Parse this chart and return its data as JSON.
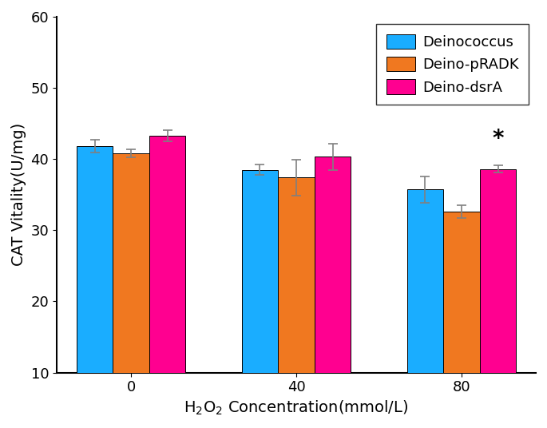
{
  "categories": [
    "0",
    "40",
    "80"
  ],
  "series": {
    "Deinococcus": {
      "values": [
        41.8,
        38.5,
        35.7
      ],
      "errors": [
        0.9,
        0.7,
        1.8
      ],
      "color": "#1AADFF"
    },
    "Deino-pRADK": {
      "values": [
        40.8,
        37.4,
        32.6
      ],
      "errors": [
        0.6,
        2.5,
        0.9
      ],
      "color": "#F07820"
    },
    "Deino-dsrA": {
      "values": [
        43.3,
        40.3,
        38.6
      ],
      "errors": [
        0.8,
        1.8,
        0.5
      ],
      "color": "#FF0090"
    }
  },
  "ylabel": "CAT Vitality(U/mg)",
  "xlabel": "H₂O₂ Concentration(mmol/L)",
  "ylim": [
    10,
    60
  ],
  "ybase": 10,
  "yticks": [
    10,
    20,
    30,
    40,
    50,
    60
  ],
  "bar_width": 0.22,
  "group_positions": [
    0,
    1,
    2
  ],
  "star_text": "*",
  "legend_order": [
    "Deinococcus",
    "Deino-pRADK",
    "Deino-dsrA"
  ],
  "legend_fontsize": 13,
  "axis_fontsize": 14,
  "tick_fontsize": 13,
  "errorbar_capsize": 4,
  "errorbar_linewidth": 1.2,
  "errorbar_color": "gray",
  "figsize": [
    6.85,
    5.36
  ],
  "dpi": 100
}
